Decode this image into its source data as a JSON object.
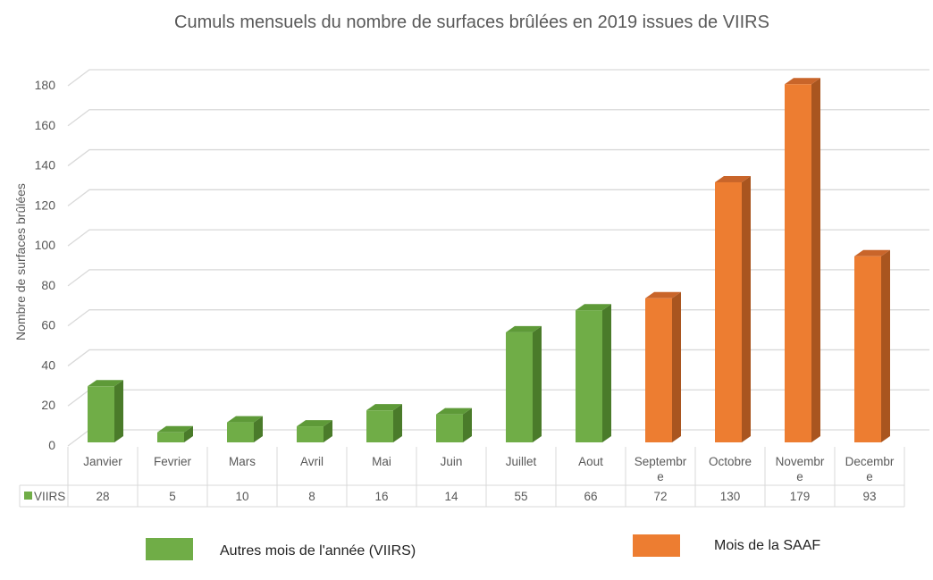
{
  "chart_data": {
    "type": "bar",
    "title": "Cumuls mensuels du nombre de surfaces brûlées en 2019 issues de VIIRS",
    "xlabel": "",
    "ylabel": "Nombre de surfaces brûlées",
    "ylim": [
      0,
      180
    ],
    "yticks": [
      0,
      20,
      40,
      60,
      80,
      100,
      120,
      140,
      160,
      180
    ],
    "grid": true,
    "categories": [
      [
        "Janvier"
      ],
      [
        "Fevrier"
      ],
      [
        "Mars"
      ],
      [
        "Avril"
      ],
      [
        "Mai"
      ],
      [
        "Juin"
      ],
      [
        "Juillet"
      ],
      [
        "Aout"
      ],
      [
        "Septembr",
        "e"
      ],
      [
        "Octobre"
      ],
      [
        "Novembr",
        "e"
      ],
      [
        "Decembr",
        "e"
      ]
    ],
    "series": [
      {
        "name": "VIIRS",
        "values": [
          28,
          5,
          10,
          8,
          16,
          14,
          55,
          66,
          72,
          130,
          179,
          93
        ],
        "groups": [
          "other",
          "other",
          "other",
          "other",
          "other",
          "other",
          "other",
          "other",
          "saaf",
          "saaf",
          "saaf",
          "saaf"
        ]
      }
    ],
    "data_table": {
      "row_label": "VIIRS",
      "values": [
        "28",
        "5",
        "10",
        "8",
        "16",
        "14",
        "55",
        "66",
        "72",
        "130",
        "179",
        "93"
      ]
    },
    "legend": {
      "placement": "bottom",
      "items": [
        {
          "key": "other",
          "label": "Autres mois de l'année (VIIRS)",
          "color": "#70ad47"
        },
        {
          "key": "saaf",
          "label": "Mois de la SAAF",
          "color": "#ed7d31"
        }
      ]
    },
    "colors": {
      "other_front": "#70ad47",
      "other_side": "#4a7b2a",
      "other_top": "#5e9a38",
      "saaf_front": "#ed7d31",
      "saaf_side": "#a9551f",
      "saaf_top": "#c9652a",
      "grid": "#d9d9d9",
      "text": "#595959"
    }
  }
}
